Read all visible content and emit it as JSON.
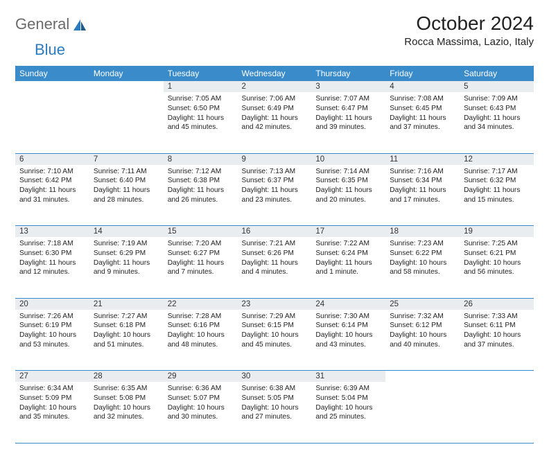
{
  "brand": {
    "part1": "General",
    "part2": "Blue"
  },
  "title": "October 2024",
  "location": "Rocca Massima, Lazio, Italy",
  "styling": {
    "header_bg": "#3a8bc9",
    "header_text": "#ffffff",
    "daynum_bg": "#e9edf0",
    "border_color": "#3a8bc9",
    "page_bg": "#ffffff",
    "brand_gray": "#6a6a6a",
    "brand_blue": "#2b7bbf",
    "title_fontsize": 28,
    "location_fontsize": 15,
    "weekday_fontsize": 12,
    "daynum_fontsize": 11.5,
    "body_fontsize": 10.2
  },
  "weekdays": [
    "Sunday",
    "Monday",
    "Tuesday",
    "Wednesday",
    "Thursday",
    "Friday",
    "Saturday"
  ],
  "weeks": [
    {
      "nums": [
        "",
        "",
        "1",
        "2",
        "3",
        "4",
        "5"
      ],
      "cells": [
        "",
        "",
        "Sunrise: 7:05 AM\nSunset: 6:50 PM\nDaylight: 11 hours and 45 minutes.",
        "Sunrise: 7:06 AM\nSunset: 6:49 PM\nDaylight: 11 hours and 42 minutes.",
        "Sunrise: 7:07 AM\nSunset: 6:47 PM\nDaylight: 11 hours and 39 minutes.",
        "Sunrise: 7:08 AM\nSunset: 6:45 PM\nDaylight: 11 hours and 37 minutes.",
        "Sunrise: 7:09 AM\nSunset: 6:43 PM\nDaylight: 11 hours and 34 minutes."
      ]
    },
    {
      "nums": [
        "6",
        "7",
        "8",
        "9",
        "10",
        "11",
        "12"
      ],
      "cells": [
        "Sunrise: 7:10 AM\nSunset: 6:42 PM\nDaylight: 11 hours and 31 minutes.",
        "Sunrise: 7:11 AM\nSunset: 6:40 PM\nDaylight: 11 hours and 28 minutes.",
        "Sunrise: 7:12 AM\nSunset: 6:38 PM\nDaylight: 11 hours and 26 minutes.",
        "Sunrise: 7:13 AM\nSunset: 6:37 PM\nDaylight: 11 hours and 23 minutes.",
        "Sunrise: 7:14 AM\nSunset: 6:35 PM\nDaylight: 11 hours and 20 minutes.",
        "Sunrise: 7:16 AM\nSunset: 6:34 PM\nDaylight: 11 hours and 17 minutes.",
        "Sunrise: 7:17 AM\nSunset: 6:32 PM\nDaylight: 11 hours and 15 minutes."
      ]
    },
    {
      "nums": [
        "13",
        "14",
        "15",
        "16",
        "17",
        "18",
        "19"
      ],
      "cells": [
        "Sunrise: 7:18 AM\nSunset: 6:30 PM\nDaylight: 11 hours and 12 minutes.",
        "Sunrise: 7:19 AM\nSunset: 6:29 PM\nDaylight: 11 hours and 9 minutes.",
        "Sunrise: 7:20 AM\nSunset: 6:27 PM\nDaylight: 11 hours and 7 minutes.",
        "Sunrise: 7:21 AM\nSunset: 6:26 PM\nDaylight: 11 hours and 4 minutes.",
        "Sunrise: 7:22 AM\nSunset: 6:24 PM\nDaylight: 11 hours and 1 minute.",
        "Sunrise: 7:23 AM\nSunset: 6:22 PM\nDaylight: 10 hours and 58 minutes.",
        "Sunrise: 7:25 AM\nSunset: 6:21 PM\nDaylight: 10 hours and 56 minutes."
      ]
    },
    {
      "nums": [
        "20",
        "21",
        "22",
        "23",
        "24",
        "25",
        "26"
      ],
      "cells": [
        "Sunrise: 7:26 AM\nSunset: 6:19 PM\nDaylight: 10 hours and 53 minutes.",
        "Sunrise: 7:27 AM\nSunset: 6:18 PM\nDaylight: 10 hours and 51 minutes.",
        "Sunrise: 7:28 AM\nSunset: 6:16 PM\nDaylight: 10 hours and 48 minutes.",
        "Sunrise: 7:29 AM\nSunset: 6:15 PM\nDaylight: 10 hours and 45 minutes.",
        "Sunrise: 7:30 AM\nSunset: 6:14 PM\nDaylight: 10 hours and 43 minutes.",
        "Sunrise: 7:32 AM\nSunset: 6:12 PM\nDaylight: 10 hours and 40 minutes.",
        "Sunrise: 7:33 AM\nSunset: 6:11 PM\nDaylight: 10 hours and 37 minutes."
      ]
    },
    {
      "nums": [
        "27",
        "28",
        "29",
        "30",
        "31",
        "",
        ""
      ],
      "cells": [
        "Sunrise: 6:34 AM\nSunset: 5:09 PM\nDaylight: 10 hours and 35 minutes.",
        "Sunrise: 6:35 AM\nSunset: 5:08 PM\nDaylight: 10 hours and 32 minutes.",
        "Sunrise: 6:36 AM\nSunset: 5:07 PM\nDaylight: 10 hours and 30 minutes.",
        "Sunrise: 6:38 AM\nSunset: 5:05 PM\nDaylight: 10 hours and 27 minutes.",
        "Sunrise: 6:39 AM\nSunset: 5:04 PM\nDaylight: 10 hours and 25 minutes.",
        "",
        ""
      ]
    }
  ]
}
